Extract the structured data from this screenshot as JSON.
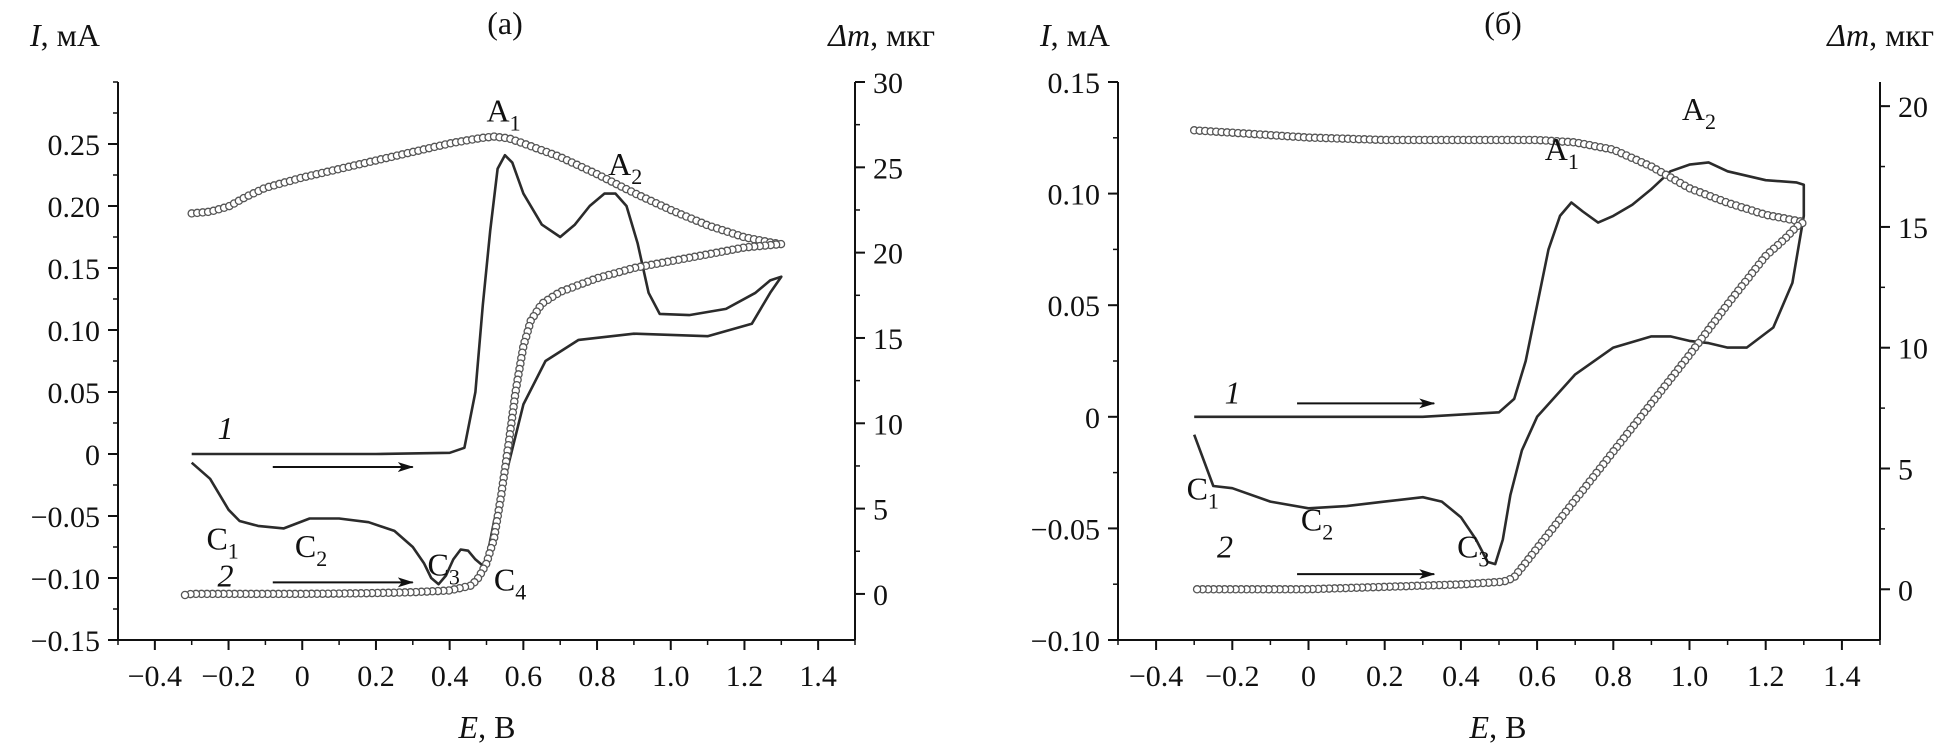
{
  "chart_data": [
    {
      "type": "line",
      "title": "(а)",
      "xlabel": {
        "var": "E",
        "rest": ", В"
      },
      "ylabel": {
        "var": "I",
        "rest": ", мА"
      },
      "y2label": {
        "var": "Δm",
        "rest": ", мкг"
      },
      "xlim": [
        -0.5,
        1.5
      ],
      "ylim": [
        -0.15,
        0.3
      ],
      "y2lim": [
        -2.7,
        30
      ],
      "x_ticks": [
        -0.4,
        -0.2,
        0,
        0.2,
        0.4,
        0.6,
        0.8,
        1.0,
        1.2,
        1.4
      ],
      "x_tick_labels": [
        "−0.4",
        "−0.2",
        "0",
        "0.2",
        "0.4",
        "0.6",
        "0.8",
        "1.0",
        "1.2",
        "1.4"
      ],
      "y_ticks": [
        -0.15,
        -0.1,
        -0.05,
        0,
        0.05,
        0.1,
        0.15,
        0.2,
        0.25
      ],
      "y_tick_labels": [
        "−0.15",
        "−0.10",
        "−0.05",
        "0",
        "0.05",
        "0.10",
        "0.15",
        "0.20",
        "0.25"
      ],
      "y2_ticks": [
        0,
        5,
        10,
        15,
        20,
        25,
        30
      ],
      "y2_tick_labels": [
        "0",
        "5",
        "10",
        "15",
        "20",
        "25",
        "30"
      ],
      "grid": false,
      "series": [
        {
          "axis": "left",
          "style": "solid",
          "color": "#2b2b2b",
          "x": [
            -0.3,
            0.0,
            0.2,
            0.4,
            0.44,
            0.47,
            0.49,
            0.51,
            0.53,
            0.55,
            0.57,
            0.6,
            0.65,
            0.7,
            0.74,
            0.78,
            0.82,
            0.85,
            0.88,
            0.91,
            0.94,
            0.97,
            1.05,
            1.15,
            1.23,
            1.27,
            1.3,
            1.27,
            1.22,
            1.1,
            0.9,
            0.75,
            0.66,
            0.6,
            0.55,
            0.52,
            0.5,
            0.49,
            0.47,
            0.45,
            0.43,
            0.41,
            0.39,
            0.37,
            0.35,
            0.33,
            0.3,
            0.25,
            0.18,
            0.1,
            0.02,
            -0.05,
            -0.12,
            -0.17,
            -0.2,
            -0.25,
            -0.3
          ],
          "y": [
            0.0,
            0.0,
            0.0,
            0.001,
            0.005,
            0.05,
            0.12,
            0.18,
            0.23,
            0.241,
            0.235,
            0.21,
            0.185,
            0.175,
            0.185,
            0.2,
            0.21,
            0.21,
            0.2,
            0.17,
            0.13,
            0.113,
            0.112,
            0.117,
            0.13,
            0.14,
            0.143,
            0.13,
            0.105,
            0.095,
            0.097,
            0.092,
            0.075,
            0.04,
            -0.02,
            -0.055,
            -0.085,
            -0.09,
            -0.085,
            -0.078,
            -0.077,
            -0.085,
            -0.098,
            -0.105,
            -0.1,
            -0.088,
            -0.075,
            -0.062,
            -0.055,
            -0.052,
            -0.052,
            -0.06,
            -0.058,
            -0.054,
            -0.045,
            -0.02,
            -0.007
          ]
        },
        {
          "axis": "right",
          "style": "markers",
          "color": "#555555",
          "x": [
            -0.3,
            -0.25,
            -0.2,
            -0.15,
            -0.1,
            -0.05,
            0.0,
            0.1,
            0.2,
            0.3,
            0.4,
            0.48,
            0.52,
            0.56,
            0.6,
            0.7,
            0.8,
            0.9,
            1.0,
            1.1,
            1.2,
            1.27,
            1.3,
            1.25,
            1.2,
            1.1,
            1.0,
            0.9,
            0.8,
            0.7,
            0.65,
            0.62,
            0.6,
            0.58,
            0.56,
            0.54,
            0.52,
            0.5,
            0.48,
            0.46,
            0.4,
            0.3,
            0.2,
            0.1,
            0.0,
            -0.1,
            -0.2,
            -0.25,
            -0.3,
            -0.33
          ],
          "y": [
            22.3,
            22.4,
            22.7,
            23.3,
            23.8,
            24.1,
            24.4,
            24.9,
            25.4,
            25.9,
            26.4,
            26.7,
            26.8,
            26.7,
            26.4,
            25.6,
            24.6,
            23.5,
            22.5,
            21.6,
            20.9,
            20.6,
            20.5,
            20.4,
            20.3,
            19.9,
            19.5,
            19.1,
            18.5,
            17.7,
            17.0,
            16.0,
            14.5,
            12.0,
            8.8,
            5.8,
            3.2,
            1.8,
            1.0,
            0.5,
            0.2,
            0.1,
            0.05,
            0.02,
            0.0,
            0.0,
            0.0,
            0.0,
            0.0,
            -0.1
          ]
        }
      ],
      "annotations": [
        {
          "base": "A",
          "sub": "1",
          "x": 0.5,
          "y": 0.268
        },
        {
          "base": "A",
          "sub": "2",
          "x": 0.83,
          "y": 0.225
        },
        {
          "base": "C",
          "sub": "1",
          "x": -0.26,
          "y": -0.077
        },
        {
          "base": "C",
          "sub": "2",
          "x": -0.02,
          "y": -0.083
        },
        {
          "base": "C",
          "sub": "3",
          "x": 0.34,
          "y": -0.098
        },
        {
          "base": "C",
          "sub": "4",
          "x": 0.52,
          "y": -0.11
        },
        {
          "base": "1",
          "sub": "",
          "x": -0.23,
          "y": 0.012,
          "italic": true
        },
        {
          "base": "2",
          "sub": "",
          "x": -0.23,
          "y": -0.107,
          "italic": true
        }
      ],
      "arrows": [
        {
          "x1": -0.08,
          "x2": 0.3,
          "y": -0.0105
        },
        {
          "x1": -0.08,
          "x2": 0.3,
          "y": -0.1035
        }
      ]
    },
    {
      "type": "line",
      "title": "(б)",
      "xlabel": {
        "var": "E",
        "rest": ", В"
      },
      "ylabel": {
        "var": "I",
        "rest": ", мА"
      },
      "y2label": {
        "var": "Δm",
        "rest": ", мкг"
      },
      "xlim": [
        -0.5,
        1.5
      ],
      "ylim": [
        -0.1,
        0.15
      ],
      "y2lim": [
        -2.1,
        21
      ],
      "x_ticks": [
        -0.4,
        -0.2,
        0,
        0.2,
        0.4,
        0.6,
        0.8,
        1.0,
        1.2,
        1.4
      ],
      "x_tick_labels": [
        "−0.4",
        "−0.2",
        "0",
        "0.2",
        "0.4",
        "0.6",
        "0.8",
        "1.0",
        "1.2",
        "1.4"
      ],
      "y_ticks": [
        -0.1,
        -0.05,
        0,
        0.05,
        0.1,
        0.15
      ],
      "y_tick_labels": [
        "−0.10",
        "−0.05",
        "0",
        "0.05",
        "0.10",
        "0.15"
      ],
      "y2_ticks": [
        0,
        5,
        10,
        15,
        20
      ],
      "y2_tick_labels": [
        "0",
        "5",
        "10",
        "15",
        "20"
      ],
      "grid": false,
      "series": [
        {
          "axis": "left",
          "style": "solid",
          "color": "#2b2b2b",
          "x": [
            -0.3,
            0.0,
            0.3,
            0.5,
            0.54,
            0.57,
            0.6,
            0.63,
            0.66,
            0.69,
            0.72,
            0.76,
            0.8,
            0.85,
            0.9,
            0.95,
            1.0,
            1.05,
            1.1,
            1.2,
            1.28,
            1.3,
            1.3,
            1.27,
            1.22,
            1.15,
            1.1,
            1.05,
            1.0,
            0.95,
            0.9,
            0.8,
            0.7,
            0.6,
            0.56,
            0.53,
            0.51,
            0.49,
            0.47,
            0.44,
            0.4,
            0.35,
            0.3,
            0.2,
            0.1,
            0.0,
            -0.1,
            -0.2,
            -0.25,
            -0.3
          ],
          "y": [
            0.0,
            0.0,
            0.0,
            0.002,
            0.008,
            0.025,
            0.05,
            0.075,
            0.09,
            0.096,
            0.092,
            0.087,
            0.09,
            0.095,
            0.102,
            0.11,
            0.113,
            0.114,
            0.11,
            0.106,
            0.105,
            0.104,
            0.09,
            0.06,
            0.04,
            0.031,
            0.031,
            0.033,
            0.034,
            0.036,
            0.036,
            0.031,
            0.019,
            0.0,
            -0.015,
            -0.035,
            -0.055,
            -0.066,
            -0.065,
            -0.055,
            -0.045,
            -0.038,
            -0.036,
            -0.038,
            -0.04,
            -0.041,
            -0.038,
            -0.032,
            -0.031,
            -0.008
          ]
        },
        {
          "axis": "right",
          "style": "markers",
          "color": "#555555",
          "x": [
            -0.3,
            -0.2,
            -0.1,
            0.0,
            0.2,
            0.4,
            0.6,
            0.7,
            0.8,
            0.9,
            1.0,
            1.1,
            1.2,
            1.3,
            1.28,
            1.25,
            1.2,
            1.1,
            1.0,
            0.9,
            0.8,
            0.7,
            0.6,
            0.56,
            0.54,
            0.52,
            0.5,
            0.45,
            0.4,
            0.3,
            0.2,
            0.1,
            0.0,
            -0.1,
            -0.2,
            -0.3
          ],
          "y": [
            19.0,
            18.9,
            18.8,
            18.7,
            18.6,
            18.6,
            18.6,
            18.5,
            18.2,
            17.5,
            16.6,
            16.0,
            15.5,
            15.2,
            15.0,
            14.5,
            13.8,
            11.8,
            9.7,
            7.7,
            5.7,
            3.7,
            1.7,
            0.9,
            0.5,
            0.35,
            0.3,
            0.25,
            0.2,
            0.15,
            0.1,
            0.05,
            0.0,
            0.0,
            0.0,
            0.0
          ]
        }
      ],
      "annotations": [
        {
          "base": "A",
          "sub": "1",
          "x": 0.62,
          "y": 0.115
        },
        {
          "base": "A",
          "sub": "2",
          "x": 0.98,
          "y": 0.133
        },
        {
          "base": "C",
          "sub": "1",
          "x": -0.32,
          "y": -0.037
        },
        {
          "base": "C",
          "sub": "2",
          "x": -0.02,
          "y": -0.051
        },
        {
          "base": "C",
          "sub": "3",
          "x": 0.39,
          "y": -0.063
        },
        {
          "base": "1",
          "sub": "",
          "x": -0.22,
          "y": 0.006,
          "italic": true
        },
        {
          "base": "2",
          "sub": "",
          "x": -0.24,
          "y": -0.063,
          "italic": true
        }
      ],
      "arrows": [
        {
          "x1": -0.03,
          "x2": 0.33,
          "y": 0.006
        },
        {
          "x1": -0.03,
          "x2": 0.33,
          "y": -0.0705
        }
      ]
    }
  ]
}
